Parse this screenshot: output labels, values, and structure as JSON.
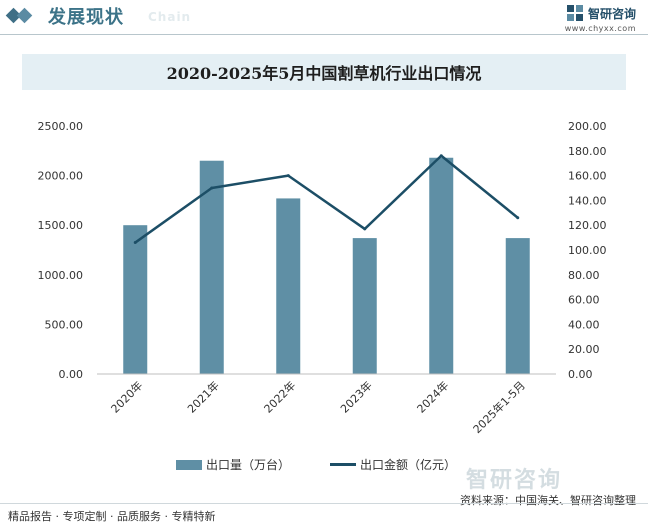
{
  "header": {
    "title": "发展现状",
    "subtitle": "Chain",
    "brand_name": "智研咨询",
    "brand_url": "www.chyxx.com"
  },
  "chart_title": "2020-2025年5月中国割草机行业出口情况",
  "chart_data": {
    "type": "bar+line",
    "title": "2020-2025年5月中国割草机行业出口情况",
    "categories": [
      "2020年",
      "2021年",
      "2022年",
      "2023年",
      "2024年",
      "2025年1-5月"
    ],
    "series": [
      {
        "name": "出口量（万台）",
        "type": "bar",
        "axis": "left",
        "color": "#5f8fa5",
        "values": [
          1500,
          2150,
          1770,
          1370,
          2180,
          1370
        ]
      },
      {
        "name": "出口金额（亿元）",
        "type": "line",
        "axis": "right",
        "color": "#1c4e66",
        "values": [
          106,
          150,
          160,
          117,
          176,
          126
        ]
      }
    ],
    "y_left": {
      "min": 0,
      "max": 2500,
      "step": 500,
      "ticks": [
        "0.00",
        "500.00",
        "1000.00",
        "1500.00",
        "2000.00",
        "2500.00"
      ]
    },
    "y_right": {
      "min": 0,
      "max": 200,
      "step": 20,
      "ticks": [
        "0.00",
        "20.00",
        "40.00",
        "60.00",
        "80.00",
        "100.00",
        "120.00",
        "140.00",
        "160.00",
        "180.00",
        "200.00"
      ]
    },
    "legend_position": "bottom"
  },
  "legend": {
    "bar_label": "出口量（万台）",
    "line_label": "出口金额（亿元）"
  },
  "source": "资料来源：中国海关、智研咨询整理",
  "footer": "精品报告 · 专项定制 · 品质服务 · 专精特新",
  "watermark": "智研咨询"
}
